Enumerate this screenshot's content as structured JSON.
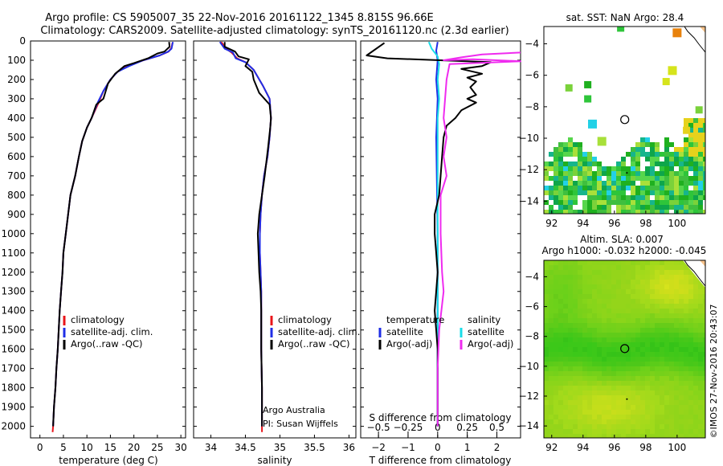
{
  "title": {
    "line1": "Argo profile: CS 5905007_35 22-Nov-2016 20161122_1345 8.815S 96.66E",
    "line2": "Climatology: CARS2009. Satellite-adjusted climatology: synTS_20161120.nc (2.3d earlier)"
  },
  "watermark": "©IMOS 27-Nov-2016 20:43:07",
  "colors": {
    "red": "#e8141a",
    "blue": "#1f2ee6",
    "black": "#000000",
    "cyan": "#19dde8",
    "magenta": "#ef2bef"
  },
  "chart_data": [
    {
      "type": "line",
      "id": "temperature",
      "xlabel": "temperature (deg C)",
      "xlim": [
        -2,
        31
      ],
      "ylim": [
        2060,
        0
      ],
      "xticks": [
        0,
        5,
        10,
        15,
        20,
        25,
        30
      ],
      "yticks": [
        0,
        100,
        200,
        300,
        400,
        500,
        600,
        700,
        800,
        900,
        1000,
        1100,
        1200,
        1300,
        1400,
        1500,
        1600,
        1700,
        1800,
        1900,
        2000
      ],
      "legend": [
        "climatology",
        "satellite-adj. clim.",
        "Argo(..raw -QC)"
      ],
      "series": [
        {
          "name": "climatology",
          "color": "red",
          "points": [
            [
              28.2,
              10
            ],
            [
              28.0,
              35
            ],
            [
              27.4,
              55
            ],
            [
              25.5,
              75
            ],
            [
              22,
              100
            ],
            [
              19,
              125
            ],
            [
              16.5,
              160
            ],
            [
              15,
              200
            ],
            [
              13.5,
              260
            ],
            [
              12.5,
              320
            ],
            [
              11,
              400
            ],
            [
              10,
              450
            ],
            [
              9,
              520
            ],
            [
              8.3,
              600
            ],
            [
              7.5,
              700
            ],
            [
              6.5,
              800
            ],
            [
              6,
              900
            ],
            [
              5.5,
              1000
            ],
            [
              5,
              1100
            ],
            [
              4.8,
              1200
            ],
            [
              4.5,
              1300
            ],
            [
              4.2,
              1400
            ],
            [
              4,
              1500
            ],
            [
              3.8,
              1600
            ],
            [
              3.5,
              1700
            ],
            [
              3.3,
              1800
            ],
            [
              3,
              1900
            ],
            [
              2.8,
              2000
            ],
            [
              2.7,
              2030
            ]
          ]
        },
        {
          "name": "satellite-adj. clim.",
          "color": "blue",
          "points": [
            [
              28.3,
              5
            ],
            [
              28.0,
              40
            ],
            [
              27.3,
              55
            ],
            [
              25.5,
              75
            ],
            [
              22,
              100
            ],
            [
              19,
              130
            ],
            [
              16.5,
              160
            ],
            [
              15,
              200
            ],
            [
              13.5,
              260
            ],
            [
              12.3,
              320
            ],
            [
              11,
              400
            ],
            [
              10,
              450
            ],
            [
              9,
              520
            ],
            [
              8.3,
              600
            ],
            [
              7.5,
              700
            ],
            [
              6.5,
              800
            ],
            [
              6,
              900
            ],
            [
              5.5,
              1000
            ],
            [
              5,
              1100
            ],
            [
              4.8,
              1200
            ],
            [
              4.5,
              1300
            ],
            [
              4.2,
              1400
            ],
            [
              4,
              1500
            ],
            [
              3.8,
              1600
            ],
            [
              3.5,
              1700
            ],
            [
              3.3,
              1800
            ],
            [
              3,
              1900
            ],
            [
              2.8,
              2000
            ]
          ]
        },
        {
          "name": "Argo(..raw -QC)",
          "color": "black",
          "points": [
            [
              27.5,
              5
            ],
            [
              27.6,
              30
            ],
            [
              26.5,
              55
            ],
            [
              25,
              65
            ],
            [
              23,
              90
            ],
            [
              20,
              115
            ],
            [
              18,
              130
            ],
            [
              16,
              170
            ],
            [
              14.5,
              220
            ],
            [
              13.5,
              300
            ],
            [
              12,
              330
            ],
            [
              11,
              400
            ],
            [
              10,
              450
            ],
            [
              9,
              520
            ],
            [
              8.3,
              600
            ],
            [
              7.5,
              700
            ],
            [
              6.5,
              800
            ],
            [
              6,
              900
            ],
            [
              5.5,
              1000
            ],
            [
              5,
              1100
            ],
            [
              4.8,
              1200
            ],
            [
              4.5,
              1300
            ],
            [
              4.2,
              1400
            ],
            [
              4,
              1500
            ],
            [
              3.8,
              1600
            ],
            [
              3.5,
              1700
            ],
            [
              3.3,
              1800
            ],
            [
              3,
              1900
            ],
            [
              2.8,
              2000
            ]
          ]
        }
      ]
    },
    {
      "type": "line",
      "id": "salinity",
      "xlabel": "salinity",
      "xlim": [
        33.75,
        36.1
      ],
      "ylim": [
        2060,
        0
      ],
      "xticks": [
        34,
        34.5,
        35,
        35.5,
        36
      ],
      "legend": [
        "climatology",
        "satellite-adj. clim.",
        "Argo(..raw -QC)"
      ],
      "annotation": [
        "Argo Australia",
        "PI: Susan Wijffels"
      ],
      "series": [
        {
          "name": "climatology",
          "color": "red",
          "points": [
            [
              34.15,
              5
            ],
            [
              34.22,
              40
            ],
            [
              34.3,
              60
            ],
            [
              34.38,
              90
            ],
            [
              34.5,
              110
            ],
            [
              34.62,
              150
            ],
            [
              34.75,
              230
            ],
            [
              34.85,
              300
            ],
            [
              34.87,
              400
            ],
            [
              34.85,
              500
            ],
            [
              34.82,
              600
            ],
            [
              34.77,
              700
            ],
            [
              34.74,
              800
            ],
            [
              34.72,
              900
            ],
            [
              34.71,
              1000
            ],
            [
              34.71,
              1100
            ],
            [
              34.72,
              1200
            ],
            [
              34.73,
              1300
            ],
            [
              34.73,
              1400
            ],
            [
              34.73,
              1600
            ],
            [
              34.74,
              1800
            ],
            [
              34.74,
              2000
            ],
            [
              34.74,
              2030
            ]
          ]
        },
        {
          "name": "satellite-adj. clim.",
          "color": "blue",
          "points": [
            [
              34.13,
              5
            ],
            [
              34.2,
              40
            ],
            [
              34.32,
              60
            ],
            [
              34.36,
              90
            ],
            [
              34.5,
              110
            ],
            [
              34.62,
              150
            ],
            [
              34.75,
              230
            ],
            [
              34.85,
              300
            ],
            [
              34.87,
              400
            ],
            [
              34.85,
              500
            ],
            [
              34.82,
              600
            ],
            [
              34.77,
              700
            ],
            [
              34.74,
              800
            ],
            [
              34.72,
              900
            ],
            [
              34.71,
              1000
            ],
            [
              34.71,
              1100
            ],
            [
              34.72,
              1200
            ],
            [
              34.73,
              1300
            ],
            [
              34.73,
              1400
            ],
            [
              34.73,
              1600
            ],
            [
              34.74,
              1800
            ],
            [
              34.74,
              2000
            ]
          ]
        },
        {
          "name": "Argo(..raw -QC)",
          "color": "black",
          "points": [
            [
              34.2,
              5
            ],
            [
              34.2,
              30
            ],
            [
              34.35,
              55
            ],
            [
              34.4,
              80
            ],
            [
              34.55,
              95
            ],
            [
              34.5,
              130
            ],
            [
              34.6,
              160
            ],
            [
              34.62,
              200
            ],
            [
              34.7,
              270
            ],
            [
              34.85,
              330
            ],
            [
              34.87,
              400
            ],
            [
              34.86,
              450
            ],
            [
              34.83,
              550
            ],
            [
              34.78,
              700
            ],
            [
              34.74,
              800
            ],
            [
              34.7,
              900
            ],
            [
              34.68,
              1000
            ],
            [
              34.69,
              1100
            ],
            [
              34.7,
              1200
            ],
            [
              34.72,
              1300
            ],
            [
              34.73,
              1400
            ],
            [
              34.73,
              1600
            ],
            [
              34.74,
              1800
            ],
            [
              34.74,
              2000
            ]
          ]
        }
      ]
    },
    {
      "type": "line",
      "id": "differences",
      "xlabel": "T difference from climatology",
      "xlabel_top": "S difference from climatology",
      "xlim": [
        -2.6,
        2.8
      ],
      "ylim": [
        2060,
        0
      ],
      "xticks": [
        -2,
        -1,
        0,
        1,
        2
      ],
      "xticks_top": [
        -0.5,
        -0.25,
        0,
        0.25,
        0.5
      ],
      "legend_t_title": "temperature",
      "legend_s_title": "salinity",
      "legend_t": [
        "satellite",
        "Argo(-adj)"
      ],
      "legend_s": [
        "satellite",
        "Argo(-adj)"
      ],
      "series": [
        {
          "name": "T satellite",
          "color": "blue",
          "points": [
            [
              0,
              5
            ],
            [
              -0.05,
              50
            ],
            [
              0,
              100
            ],
            [
              -0.05,
              200
            ],
            [
              0,
              300
            ],
            [
              -0.05,
              500
            ],
            [
              0,
              1000
            ],
            [
              0,
              1500
            ],
            [
              0,
              2000
            ]
          ]
        },
        {
          "name": "S satellite",
          "color": "cyan",
          "points": [
            [
              -0.3,
              5
            ],
            [
              -0.2,
              40
            ],
            [
              0,
              80
            ],
            [
              0.05,
              120
            ],
            [
              0,
              200
            ],
            [
              0.05,
              300
            ],
            [
              0,
              400
            ],
            [
              0,
              600
            ],
            [
              0,
              1000
            ],
            [
              0,
              2000
            ]
          ]
        },
        {
          "name": "T Argo(-adj)",
          "color": "black",
          "points": [
            [
              -1.8,
              10
            ],
            [
              -2.4,
              75
            ],
            [
              -1.7,
              90
            ],
            [
              1.8,
              110
            ],
            [
              1.5,
              130
            ],
            [
              0.8,
              145
            ],
            [
              1.5,
              170
            ],
            [
              1.0,
              190
            ],
            [
              1.3,
              210
            ],
            [
              1.1,
              240
            ],
            [
              1.3,
              280
            ],
            [
              1.0,
              300
            ],
            [
              1.3,
              320
            ],
            [
              0.8,
              360
            ],
            [
              0.6,
              400
            ],
            [
              0.3,
              440
            ],
            [
              0.2,
              500
            ],
            [
              0.15,
              600
            ],
            [
              0.1,
              700
            ],
            [
              0.05,
              800
            ],
            [
              -0.1,
              900
            ],
            [
              -0.1,
              1000
            ],
            [
              -0.05,
              1100
            ],
            [
              0,
              1200
            ],
            [
              -0.05,
              1300
            ],
            [
              -0.1,
              1400
            ],
            [
              -0.05,
              1500
            ],
            [
              0,
              1600
            ],
            [
              0,
              1800
            ],
            [
              0,
              1900
            ],
            [
              0,
              2000
            ]
          ]
        },
        {
          "name": "S Argo(-adj)",
          "color": "magenta",
          "points": [
            [
              2.8,
              60
            ],
            [
              1.5,
              70
            ],
            [
              0.8,
              85
            ],
            [
              0.2,
              100
            ],
            [
              1.2,
              95
            ],
            [
              2.8,
              105
            ],
            [
              0.4,
              120
            ],
            [
              0.3,
              200
            ],
            [
              0.2,
              400
            ],
            [
              0.3,
              500
            ],
            [
              0.2,
              600
            ],
            [
              0.3,
              700
            ],
            [
              0.1,
              800
            ],
            [
              0.1,
              1000
            ],
            [
              0.15,
              1200
            ],
            [
              0.2,
              1300
            ],
            [
              0.05,
              1500
            ],
            [
              0,
              1700
            ],
            [
              0,
              1900
            ],
            [
              0,
              2000
            ]
          ]
        }
      ]
    },
    {
      "type": "heatmap",
      "id": "sst_map",
      "title": "sat. SST: NaN Argo: 28.4",
      "xlim": [
        91.5,
        101.8
      ],
      "ylim": [
        -14.8,
        -2.9
      ],
      "xticks": [
        92,
        94,
        96,
        98,
        100
      ],
      "yticks": [
        -4,
        -6,
        -8,
        -10,
        -12,
        -14
      ],
      "marker": {
        "lon": 96.66,
        "lat": -8.815
      }
    },
    {
      "type": "heatmap",
      "id": "sla_map",
      "title_line1": "Altim. SLA: 0.007",
      "title_line2": "Argo h1000: -0.032 h2000: -0.045",
      "xlim": [
        91.5,
        101.8
      ],
      "ylim": [
        -14.8,
        -2.9
      ],
      "xticks": [
        92,
        94,
        96,
        98,
        100
      ],
      "yticks": [
        -4,
        -6,
        -8,
        -10,
        -12,
        -14
      ],
      "marker": {
        "lon": 96.66,
        "lat": -8.815
      }
    }
  ]
}
